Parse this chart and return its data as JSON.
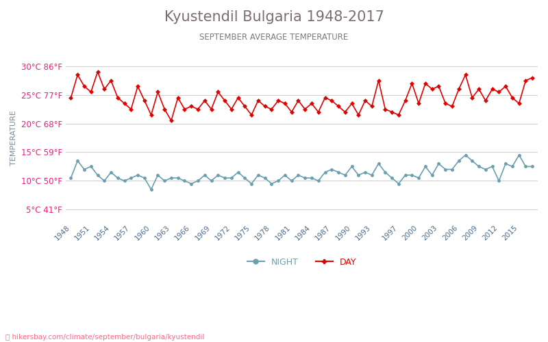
{
  "title": "Kyustendil Bulgaria 1948-2017",
  "subtitle": "SEPTEMBER AVERAGE TEMPERATURE",
  "ylabel": "TEMPERATURE",
  "watermark": "hikersbay.com/climate/september/bulgaria/kyustendil",
  "title_color": "#7a6e6e",
  "subtitle_color": "#7a7a7a",
  "ylabel_color": "#7a8a9a",
  "tick_label_color": "#e8207a",
  "tick_label_color_green": "#55aa55",
  "xticklabel_color": "#4a6a8a",
  "grid_color": "#d0d0d0",
  "day_color": "#e00000",
  "night_color": "#6a9fb0",
  "background_color": "#ffffff",
  "years": [
    1948,
    1949,
    1950,
    1951,
    1952,
    1953,
    1954,
    1955,
    1956,
    1957,
    1958,
    1959,
    1960,
    1961,
    1962,
    1963,
    1964,
    1965,
    1966,
    1967,
    1968,
    1969,
    1970,
    1971,
    1972,
    1973,
    1974,
    1975,
    1976,
    1977,
    1978,
    1979,
    1980,
    1981,
    1982,
    1983,
    1984,
    1985,
    1986,
    1987,
    1988,
    1989,
    1990,
    1991,
    1992,
    1993,
    1994,
    1995,
    1996,
    1997,
    1998,
    1999,
    2000,
    2001,
    2002,
    2003,
    2004,
    2005,
    2006,
    2007,
    2008,
    2009,
    2010,
    2011,
    2012,
    2013,
    2014,
    2015,
    2016,
    2017
  ],
  "day_temps": [
    24.5,
    28.5,
    26.5,
    25.5,
    29.0,
    26.0,
    27.5,
    24.5,
    23.5,
    22.5,
    26.5,
    24.0,
    21.5,
    25.5,
    22.5,
    20.5,
    24.5,
    22.5,
    23.0,
    22.5,
    24.0,
    22.5,
    25.5,
    24.0,
    22.5,
    24.5,
    23.0,
    21.5,
    24.0,
    23.0,
    22.5,
    24.0,
    23.5,
    22.0,
    24.0,
    22.5,
    23.5,
    22.0,
    24.5,
    24.0,
    23.0,
    22.0,
    23.5,
    21.5,
    24.0,
    23.0,
    27.5,
    22.5,
    22.0,
    21.5,
    24.0,
    27.0,
    23.5,
    27.0,
    26.0,
    26.5,
    23.5,
    23.0,
    26.0,
    28.5,
    24.5,
    26.0,
    24.0,
    26.0,
    25.5,
    26.5,
    24.5,
    23.5,
    27.5,
    28.0
  ],
  "night_temps": [
    10.5,
    13.5,
    12.0,
    12.5,
    11.0,
    10.0,
    11.5,
    10.5,
    10.0,
    10.5,
    11.0,
    10.5,
    8.5,
    11.0,
    10.0,
    10.5,
    10.5,
    10.0,
    9.5,
    10.0,
    11.0,
    10.0,
    11.0,
    10.5,
    10.5,
    11.5,
    10.5,
    9.5,
    11.0,
    10.5,
    9.5,
    10.0,
    11.0,
    10.0,
    11.0,
    10.5,
    10.5,
    10.0,
    11.5,
    12.0,
    11.5,
    11.0,
    12.5,
    11.0,
    11.5,
    11.0,
    13.0,
    11.5,
    10.5,
    9.5,
    11.0,
    11.0,
    10.5,
    12.5,
    11.0,
    13.0,
    12.0,
    12.0,
    13.5,
    14.5,
    13.5,
    12.5,
    12.0,
    12.5,
    10.0,
    13.0,
    12.5,
    14.5,
    12.5,
    12.5
  ],
  "yticks_celsius": [
    5,
    10,
    15,
    20,
    25,
    30
  ],
  "yticks_fahrenheit": [
    41,
    50,
    59,
    68,
    77,
    86
  ],
  "xticks": [
    1948,
    1951,
    1954,
    1957,
    1960,
    1963,
    1966,
    1969,
    1972,
    1975,
    1978,
    1981,
    1984,
    1987,
    1990,
    1993,
    1997,
    2000,
    2003,
    2006,
    2009,
    2012,
    2015
  ],
  "ymin": 3,
  "ymax": 32
}
